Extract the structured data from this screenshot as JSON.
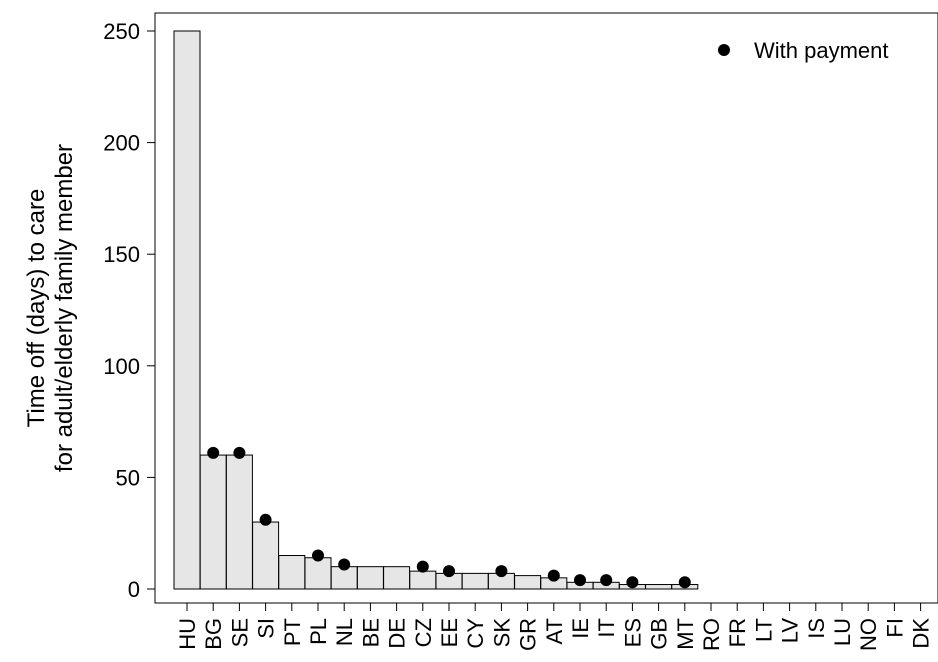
{
  "chart_data": {
    "type": "bar",
    "title": "",
    "xlabel": "",
    "ylabel_line1": "Time off (days) to care",
    "ylabel_line2": "for adult/elderly family member",
    "ylim": [
      0,
      250
    ],
    "yticks": [
      0,
      50,
      100,
      150,
      200,
      250
    ],
    "grid": false,
    "legend_position": "top-right",
    "categories": [
      "HU",
      "BG",
      "SE",
      "SI",
      "PT",
      "PL",
      "NL",
      "BE",
      "DE",
      "CZ",
      "EE",
      "CY",
      "SK",
      "GR",
      "AT",
      "IE",
      "IT",
      "ES",
      "GB",
      "MT",
      "RO",
      "FR",
      "LT",
      "LV",
      "IS",
      "LU",
      "NO",
      "FI",
      "DK"
    ],
    "series": [
      {
        "values": [
          250,
          60,
          60,
          30,
          15,
          14,
          10,
          10,
          10,
          8,
          7,
          7,
          7,
          6,
          5,
          3,
          3,
          2,
          2,
          2,
          0,
          0,
          0,
          0,
          0,
          0,
          0,
          0,
          0
        ],
        "color": "#e6e6e6"
      },
      {
        "name": "With payment",
        "marker": "dot",
        "color": "#000000",
        "values": [
          null,
          61,
          61,
          31,
          null,
          15,
          11,
          null,
          null,
          10,
          8,
          null,
          8,
          null,
          6,
          4,
          4,
          3,
          null,
          3,
          null,
          null,
          null,
          null,
          null,
          null,
          null,
          null,
          null
        ]
      }
    ]
  }
}
